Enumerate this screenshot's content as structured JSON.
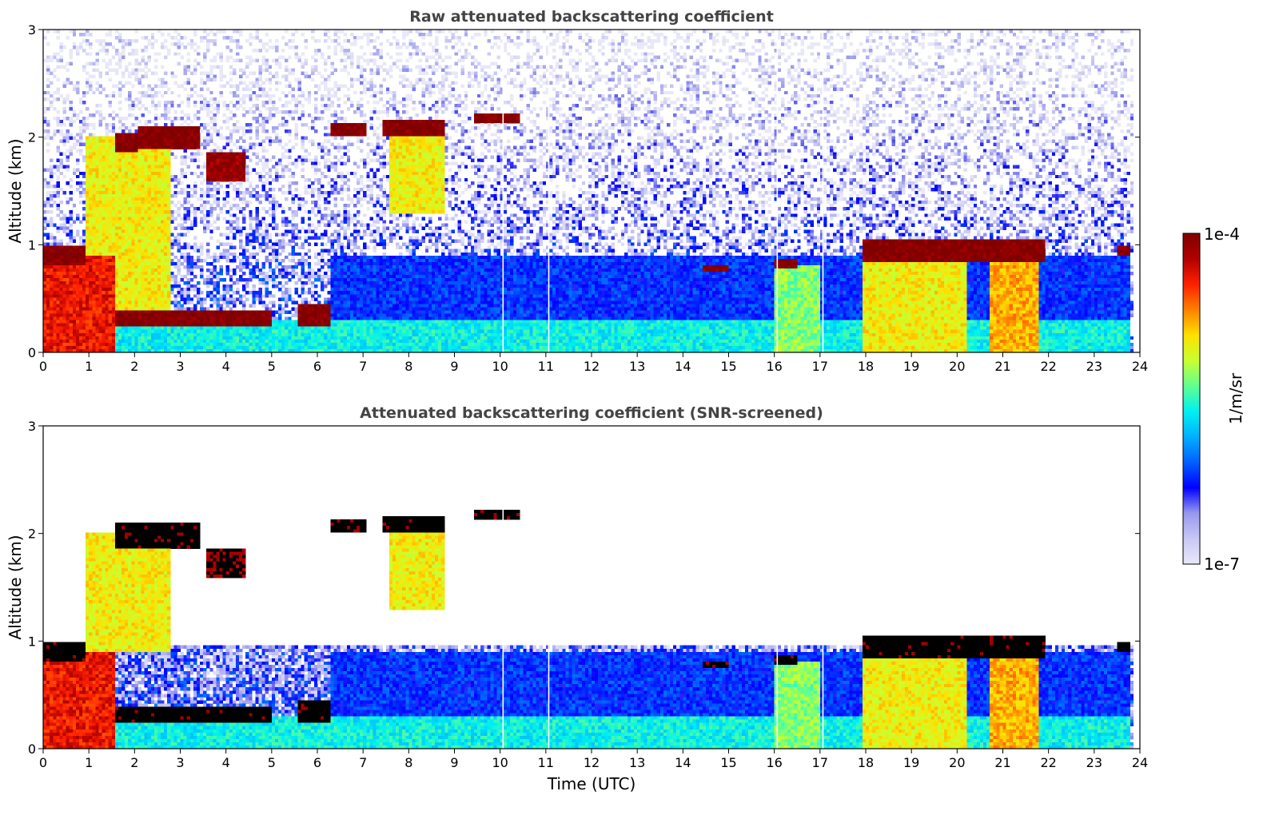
{
  "colors": {
    "clear_sky": "#ffffff",
    "saturated": "#000000",
    "title": "#444444"
  },
  "colorbar": {
    "label": "1/m/sr",
    "max_label": "1e-4",
    "min_label": "1e-7",
    "scale": "log",
    "range": [
      1e-07,
      0.0001
    ],
    "colormap": [
      "#e8e8f8",
      "#c8c8f4",
      "#9898ee",
      "#0000ff",
      "#0060ff",
      "#00b0ff",
      "#00f0f0",
      "#60ff90",
      "#c8ff30",
      "#ffe000",
      "#ff8000",
      "#ff2000",
      "#b00000",
      "#800000"
    ]
  },
  "chart_data": [
    {
      "type": "heatmap",
      "title": "Raw attenuated backscattering coefficient",
      "xlabel": "",
      "ylabel": "Altitude (km)",
      "xlim": [
        0,
        24
      ],
      "ylim": [
        0,
        3
      ],
      "x_ticks": [
        "0",
        "1",
        "2",
        "3",
        "4",
        "5",
        "6",
        "7",
        "8",
        "9",
        "10",
        "11",
        "12",
        "13",
        "14",
        "15",
        "16",
        "17",
        "18",
        "19",
        "20",
        "21",
        "22",
        "23",
        "24"
      ],
      "y_ticks": [
        "0",
        "1",
        "2",
        "3"
      ],
      "colorscale": "log10 1e-7 to 1e-4 (1/m/sr)",
      "data_gaps_utc": [
        10.05,
        11.05,
        16.05,
        17.05
      ],
      "features": [
        {
          "kind": "cloud",
          "t0": 0.0,
          "t1": 0.9,
          "z0": 0.8,
          "z1": 1.0,
          "log10_value": -4.0
        },
        {
          "kind": "aerosol",
          "t0": 0.0,
          "t1": 1.6,
          "z0": 0.0,
          "z1": 0.9,
          "log10_value": -4.4
        },
        {
          "kind": "cloud",
          "t0": 1.6,
          "t1": 2.1,
          "z0": 1.85,
          "z1": 2.05,
          "log10_value": -4.0
        },
        {
          "kind": "cloud",
          "t0": 2.1,
          "t1": 3.4,
          "z0": 1.9,
          "z1": 2.1,
          "log10_value": -4.0
        },
        {
          "kind": "cloud",
          "t0": 3.6,
          "t1": 4.4,
          "z0": 1.6,
          "z1": 1.85,
          "log10_value": -4.1
        },
        {
          "kind": "precipitation",
          "t0": 0.9,
          "t1": 2.8,
          "z0": 0.3,
          "z1": 2.0,
          "log10_value": -5.0
        },
        {
          "kind": "cloud",
          "t0": 1.6,
          "t1": 5.0,
          "z0": 0.25,
          "z1": 0.4,
          "log10_value": -4.0
        },
        {
          "kind": "cloud",
          "t0": 5.6,
          "t1": 6.3,
          "z0": 0.25,
          "z1": 0.45,
          "log10_value": -4.0
        },
        {
          "kind": "cloud",
          "t0": 6.3,
          "t1": 7.1,
          "z0": 2.0,
          "z1": 2.12,
          "log10_value": -4.0
        },
        {
          "kind": "cloud",
          "t0": 7.4,
          "t1": 8.8,
          "z0": 2.0,
          "z1": 2.15,
          "log10_value": -4.0
        },
        {
          "kind": "precipitation",
          "t0": 7.6,
          "t1": 8.8,
          "z0": 1.3,
          "z1": 2.0,
          "log10_value": -5.0
        },
        {
          "kind": "cloud",
          "t0": 9.4,
          "t1": 10.4,
          "z0": 2.12,
          "z1": 2.22,
          "log10_value": -4.0
        },
        {
          "kind": "boundary_layer",
          "t0": 0.0,
          "t1": 23.8,
          "z0": 0.0,
          "z1": 0.3,
          "log10_value": -5.6
        },
        {
          "kind": "boundary_layer",
          "t0": 6.3,
          "t1": 23.8,
          "z0": 0.3,
          "z1": 0.9,
          "log10_value": -6.2
        },
        {
          "kind": "cloud",
          "t0": 14.4,
          "t1": 15.0,
          "z0": 0.75,
          "z1": 0.82,
          "log10_value": -4.0
        },
        {
          "kind": "cloud",
          "t0": 16.0,
          "t1": 16.5,
          "z0": 0.78,
          "z1": 0.86,
          "log10_value": -4.0
        },
        {
          "kind": "precipitation",
          "t0": 16.0,
          "t1": 17.0,
          "z0": 0.0,
          "z1": 0.8,
          "log10_value": -5.3
        },
        {
          "kind": "cloud",
          "t0": 17.9,
          "t1": 21.9,
          "z0": 0.85,
          "z1": 1.05,
          "log10_value": -4.0
        },
        {
          "kind": "precipitation",
          "t0": 17.9,
          "t1": 20.2,
          "z0": 0.0,
          "z1": 0.85,
          "log10_value": -5.0
        },
        {
          "kind": "precipitation",
          "t0": 20.7,
          "t1": 21.8,
          "z0": 0.0,
          "z1": 0.95,
          "log10_value": -4.8
        },
        {
          "kind": "cloud",
          "t0": 23.5,
          "t1": 23.8,
          "z0": 0.9,
          "z1": 0.98,
          "log10_value": -4.0
        }
      ]
    },
    {
      "type": "heatmap",
      "title": "Attenuated backscattering coefficient (SNR-screened)",
      "xlabel": "Time (UTC)",
      "ylabel": "Altitude (km)",
      "xlim": [
        0,
        24
      ],
      "ylim": [
        0,
        3
      ],
      "x_ticks": [
        "0",
        "1",
        "2",
        "3",
        "4",
        "5",
        "6",
        "7",
        "8",
        "9",
        "10",
        "11",
        "12",
        "13",
        "14",
        "15",
        "16",
        "17",
        "18",
        "19",
        "20",
        "21",
        "22",
        "23",
        "24"
      ],
      "y_ticks": [
        "0",
        "1",
        "2",
        "3"
      ],
      "colorscale": "log10 1e-7 to 1e-4 (1/m/sr)",
      "screening": "pixels below SNR threshold shown as white; saturated cloud cores shown black",
      "data_gaps_utc": [
        10.05,
        11.05,
        16.05,
        17.05
      ],
      "features": [
        {
          "kind": "cloud",
          "t0": 0.0,
          "t1": 0.9,
          "z0": 0.8,
          "z1": 1.0,
          "log10_value": -4.0
        },
        {
          "kind": "aerosol",
          "t0": 0.0,
          "t1": 1.6,
          "z0": 0.0,
          "z1": 0.9,
          "log10_value": -4.4
        },
        {
          "kind": "cloud",
          "t0": 1.6,
          "t1": 3.4,
          "z0": 1.85,
          "z1": 2.1,
          "log10_value": -4.0
        },
        {
          "kind": "cloud",
          "t0": 3.6,
          "t1": 4.4,
          "z0": 1.6,
          "z1": 1.85,
          "log10_value": -4.1
        },
        {
          "kind": "precipitation",
          "t0": 0.9,
          "t1": 2.8,
          "z0": 0.9,
          "z1": 2.0,
          "log10_value": -5.0
        },
        {
          "kind": "cloud",
          "t0": 1.6,
          "t1": 5.0,
          "z0": 0.25,
          "z1": 0.4,
          "log10_value": -4.0
        },
        {
          "kind": "cloud",
          "t0": 5.6,
          "t1": 6.3,
          "z0": 0.25,
          "z1": 0.45,
          "log10_value": -4.0
        },
        {
          "kind": "cloud",
          "t0": 6.3,
          "t1": 7.1,
          "z0": 2.0,
          "z1": 2.12,
          "log10_value": -4.0
        },
        {
          "kind": "cloud",
          "t0": 7.4,
          "t1": 8.8,
          "z0": 2.0,
          "z1": 2.15,
          "log10_value": -4.0
        },
        {
          "kind": "precipitation",
          "t0": 7.6,
          "t1": 8.8,
          "z0": 1.3,
          "z1": 2.0,
          "log10_value": -5.0
        },
        {
          "kind": "cloud",
          "t0": 9.4,
          "t1": 10.4,
          "z0": 2.12,
          "z1": 2.22,
          "log10_value": -4.0
        },
        {
          "kind": "boundary_layer",
          "t0": 0.0,
          "t1": 23.8,
          "z0": 0.0,
          "z1": 0.3,
          "log10_value": -5.6
        },
        {
          "kind": "boundary_layer",
          "t0": 6.3,
          "t1": 23.8,
          "z0": 0.3,
          "z1": 0.9,
          "log10_value": -6.2
        },
        {
          "kind": "cloud",
          "t0": 14.4,
          "t1": 15.0,
          "z0": 0.75,
          "z1": 0.82,
          "log10_value": -4.0
        },
        {
          "kind": "cloud",
          "t0": 16.0,
          "t1": 16.5,
          "z0": 0.78,
          "z1": 0.86,
          "log10_value": -4.0
        },
        {
          "kind": "precipitation",
          "t0": 16.0,
          "t1": 17.0,
          "z0": 0.0,
          "z1": 0.8,
          "log10_value": -5.3
        },
        {
          "kind": "cloud",
          "t0": 17.9,
          "t1": 21.9,
          "z0": 0.85,
          "z1": 1.05,
          "log10_value": -4.0
        },
        {
          "kind": "precipitation",
          "t0": 17.9,
          "t1": 20.2,
          "z0": 0.0,
          "z1": 0.85,
          "log10_value": -5.0
        },
        {
          "kind": "precipitation",
          "t0": 20.7,
          "t1": 21.8,
          "z0": 0.0,
          "z1": 0.95,
          "log10_value": -4.8
        },
        {
          "kind": "cloud",
          "t0": 23.5,
          "t1": 23.8,
          "z0": 0.9,
          "z1": 0.98,
          "log10_value": -4.0
        }
      ]
    }
  ]
}
